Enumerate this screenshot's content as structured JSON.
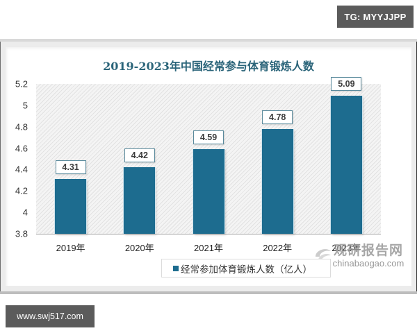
{
  "watermarks": {
    "top": "TG: MYYJJPP",
    "bottom": "www.swj517.com"
  },
  "brand": {
    "name_cn": "观研报告网",
    "url": "chinabaogao.com"
  },
  "colors": {
    "bar": "#1d6c8f",
    "title": "#2a6479",
    "label_border": "#5a8a9c"
  },
  "chart_data": {
    "type": "bar",
    "title": "2019-2023年中国经常参与体育锻炼人数",
    "categories": [
      "2019年",
      "2020年",
      "2021年",
      "2022年",
      "2023年"
    ],
    "series": [
      {
        "name": "经常参加体育锻炼人数（亿人）",
        "values": [
          4.31,
          4.42,
          4.59,
          4.78,
          5.09
        ]
      }
    ],
    "value_labels": [
      "4.31",
      "4.42",
      "4.59",
      "4.78",
      "5.09"
    ],
    "xlabel": "",
    "ylabel": "",
    "ylim": [
      3.8,
      5.2
    ],
    "yticks": [
      "5.2",
      "5",
      "4.8",
      "4.6",
      "4.4",
      "4.2",
      "4",
      "3.8"
    ],
    "grid": false,
    "legend_position": "bottom"
  }
}
